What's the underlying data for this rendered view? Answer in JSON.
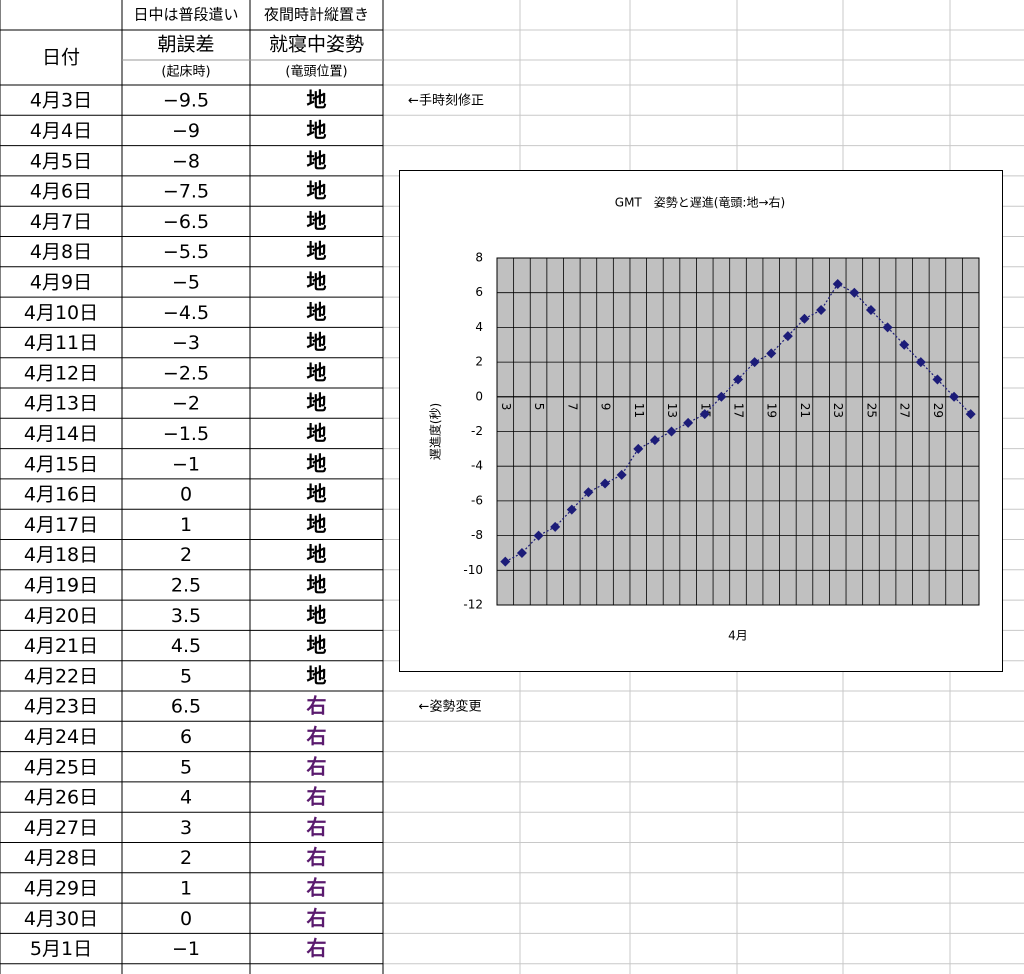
{
  "table": {
    "date_header": "日付",
    "header_rows": [
      [
        "日中は普段遣い",
        "夜間時計縦置き"
      ],
      [
        "朝誤差",
        "就寝中姿勢"
      ],
      [
        "(起床時)",
        "(竜頭位置)"
      ]
    ],
    "rows": [
      [
        "4月3日",
        "−9.5",
        "地"
      ],
      [
        "4月4日",
        "−9",
        "地"
      ],
      [
        "4月5日",
        "−8",
        "地"
      ],
      [
        "4月6日",
        "−7.5",
        "地"
      ],
      [
        "4月7日",
        "−6.5",
        "地"
      ],
      [
        "4月8日",
        "−5.5",
        "地"
      ],
      [
        "4月9日",
        "−5",
        "地"
      ],
      [
        "4月10日",
        "−4.5",
        "地"
      ],
      [
        "4月11日",
        "−3",
        "地"
      ],
      [
        "4月12日",
        "−2.5",
        "地"
      ],
      [
        "4月13日",
        "−2",
        "地"
      ],
      [
        "4月14日",
        "−1.5",
        "地"
      ],
      [
        "4月15日",
        "−1",
        "地"
      ],
      [
        "4月16日",
        "0",
        "地"
      ],
      [
        "4月17日",
        "1",
        "地"
      ],
      [
        "4月18日",
        "2",
        "地"
      ],
      [
        "4月19日",
        "2.5",
        "地"
      ],
      [
        "4月20日",
        "3.5",
        "地"
      ],
      [
        "4月21日",
        "4.5",
        "地"
      ],
      [
        "4月22日",
        "5",
        "地"
      ],
      [
        "4月23日",
        "6.5",
        "右"
      ],
      [
        "4月24日",
        "6",
        "右"
      ],
      [
        "4月25日",
        "5",
        "右"
      ],
      [
        "4月26日",
        "4",
        "右"
      ],
      [
        "4月27日",
        "3",
        "右"
      ],
      [
        "4月28日",
        "2",
        "右"
      ],
      [
        "4月29日",
        "1",
        "右"
      ],
      [
        "4月30日",
        "0",
        "右"
      ],
      [
        "5月1日",
        "−1",
        "右"
      ]
    ]
  },
  "annotations": [
    "←手時刻修正",
    "←姿勢変更"
  ],
  "chart_data": {
    "type": "line",
    "title": "GMT　姿勢と遅進(竜頭:地→右)",
    "x_label": "4月",
    "y_label": "遅進度(秒)",
    "categories": [
      "3",
      null,
      "5",
      null,
      "7",
      null,
      "9",
      null,
      "11",
      null,
      "13",
      null,
      "15",
      null,
      "17",
      null,
      "19",
      null,
      "21",
      null,
      "23",
      null,
      "25",
      null,
      "27",
      null,
      "29",
      null,
      null
    ],
    "series": [
      {
        "name": "遅進度",
        "color": "#1c1c78",
        "values": [
          -9.5,
          -9,
          -8,
          -7.5,
          -6.5,
          -5.5,
          -5,
          -4.5,
          -3,
          -2.5,
          -2,
          -1.5,
          -1,
          0,
          1,
          2,
          2.5,
          3.5,
          4.5,
          5,
          6.5,
          6,
          5,
          4,
          3,
          2,
          1,
          0,
          -1
        ]
      }
    ],
    "ylim": [
      -12,
      8
    ],
    "yticks": [
      -12,
      -10,
      -8,
      -6,
      -4,
      -2,
      0,
      2,
      4,
      6,
      8
    ],
    "grid": true,
    "plot_background": "#c0c0c0"
  }
}
